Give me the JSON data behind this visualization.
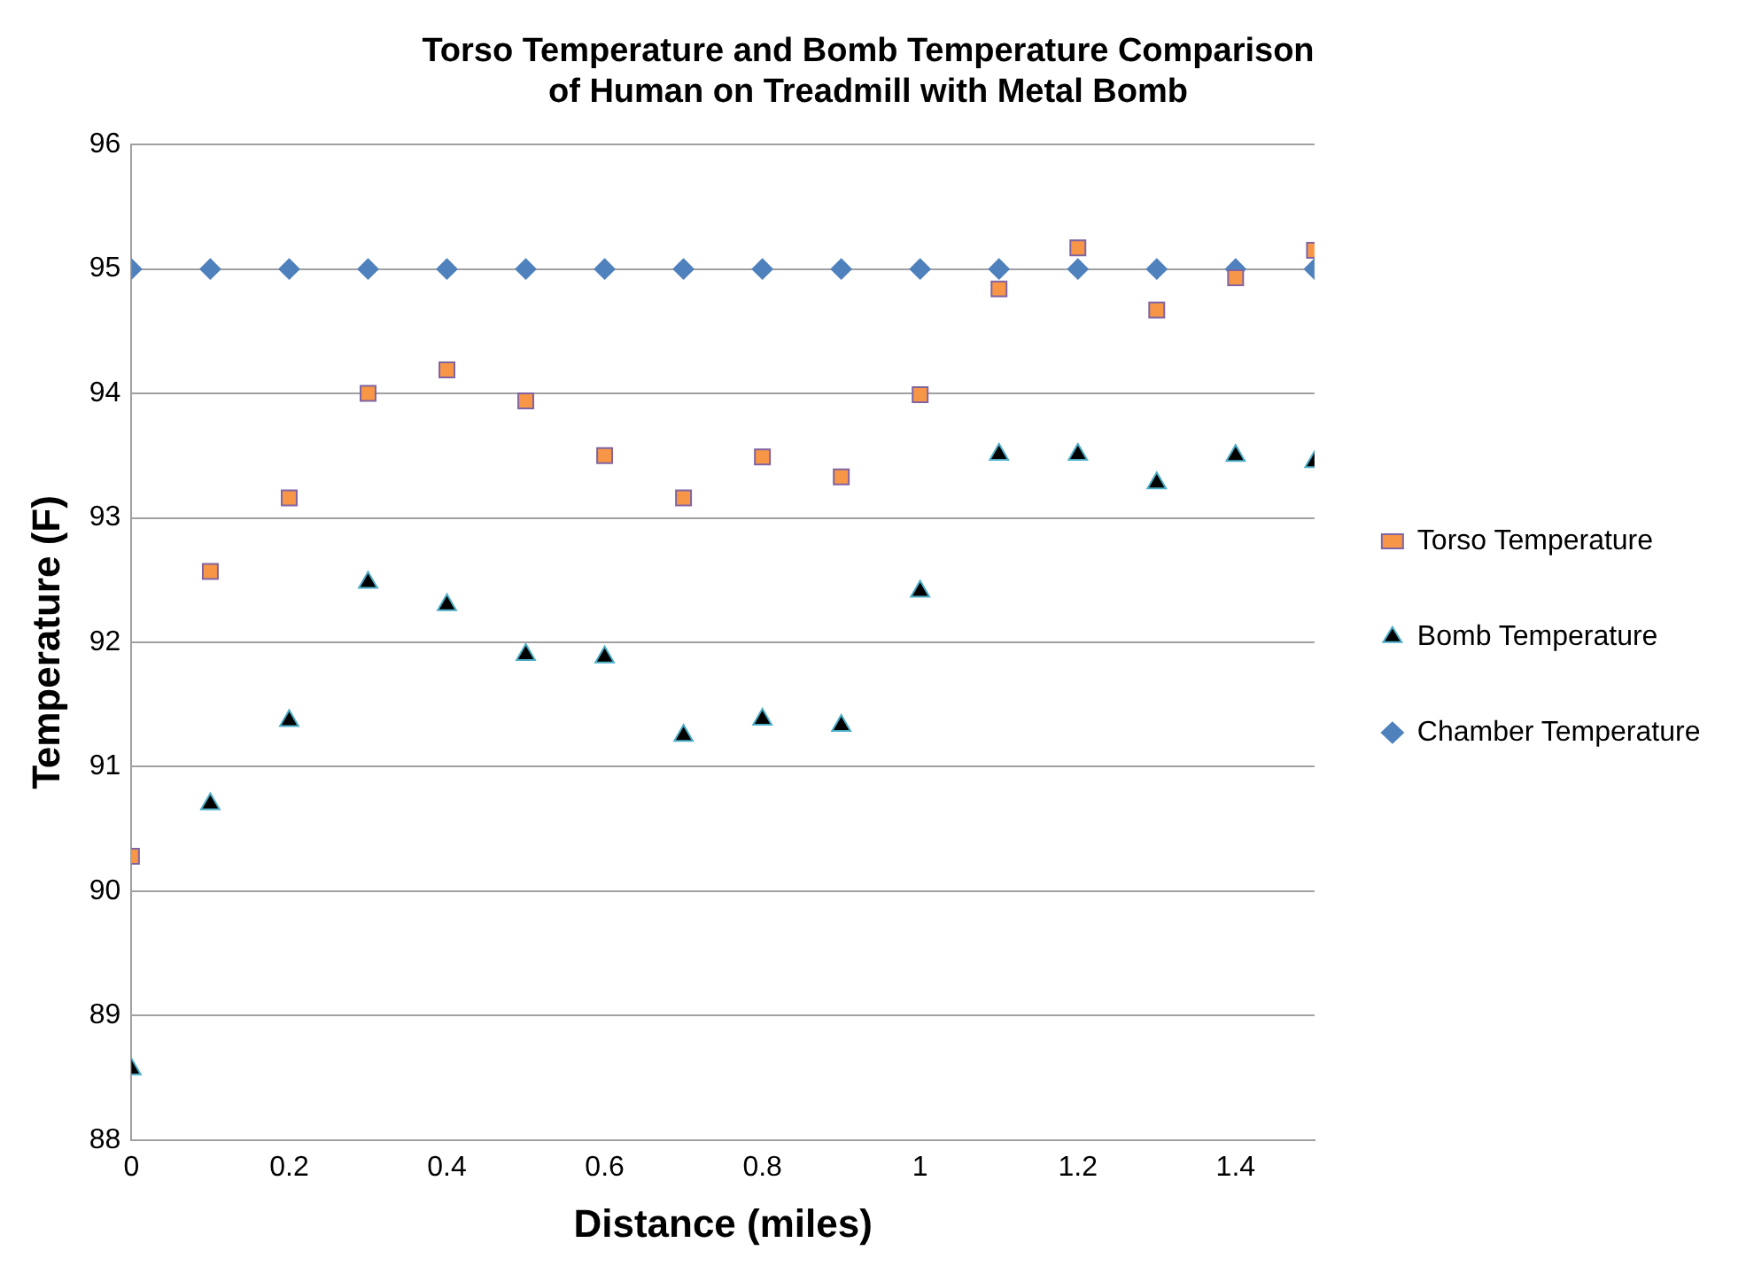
{
  "chart_data": {
    "type": "scatter",
    "title": "Torso Temperature and Bomb Temperature Comparison\nof Human on Treadmill with Metal Bomb",
    "xlabel": "Distance (miles)",
    "ylabel": "Temperature (F)",
    "x": [
      0,
      0.1,
      0.2,
      0.3,
      0.4,
      0.5,
      0.6,
      0.7,
      0.8,
      0.9,
      1.0,
      1.1,
      1.2,
      1.3,
      1.4,
      1.5
    ],
    "series": [
      {
        "name": "Torso Temperature",
        "color": "#f79646",
        "marker": "square",
        "values": [
          90.28,
          92.57,
          93.16,
          94.0,
          94.19,
          93.94,
          93.5,
          93.16,
          93.49,
          93.33,
          93.99,
          94.84,
          95.17,
          94.67,
          94.93,
          95.15
        ]
      },
      {
        "name": "Bomb Temperature",
        "color": "#000000",
        "marker": "triangle",
        "values": [
          88.57,
          90.7,
          91.37,
          92.48,
          92.3,
          91.9,
          91.88,
          91.25,
          91.38,
          91.33,
          92.41,
          93.51,
          93.51,
          93.28,
          93.5,
          93.45
        ]
      },
      {
        "name": "Chamber Temperature",
        "color": "#4f81bd",
        "marker": "diamond",
        "values": [
          95,
          95,
          95,
          95,
          95,
          95,
          95,
          95,
          95,
          95,
          95,
          95,
          95,
          95,
          95,
          95
        ]
      }
    ],
    "xlim": [
      0,
      1.5
    ],
    "xticks": [
      0,
      0.2,
      0.4,
      0.6,
      0.8,
      1,
      1.2,
      1.4
    ],
    "ylim": [
      88,
      96
    ],
    "yticks": [
      88,
      89,
      90,
      91,
      92,
      93,
      94,
      95,
      96
    ],
    "grid": "y",
    "legend": "right"
  }
}
